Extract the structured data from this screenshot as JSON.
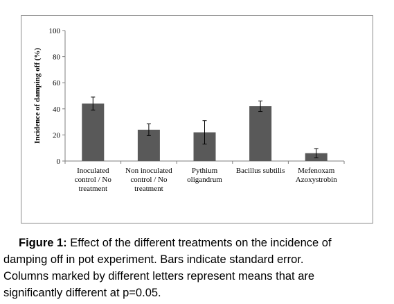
{
  "chart_data": {
    "type": "bar",
    "categories": [
      [
        "Inoculated",
        "control  / No",
        "treatment"
      ],
      [
        "Non inoculated",
        "control  / No",
        "treatment"
      ],
      [
        "Pythium",
        "oligandrum"
      ],
      [
        "Bacillus subtilis"
      ],
      [
        "Mefenoxam",
        "Azoxystrobin"
      ]
    ],
    "values": [
      44,
      24,
      22,
      42,
      6
    ],
    "errors": [
      5,
      4.5,
      9,
      4,
      3.5
    ],
    "ylabel": "Incidence of damping off (%)",
    "ylim": [
      0,
      100
    ],
    "yticks": [
      0,
      20,
      40,
      60,
      80,
      100
    ],
    "bar_color": "#595959",
    "grid": false
  },
  "caption": {
    "label": "Figure 1:",
    "line1": " Effect of the different treatments on the incidence of",
    "line2": "damping  off in pot experiment. Bars indicate standard error.",
    "line3": "Columns  marked by  different letters represent means that are",
    "line4": "significantly different at p=0.05."
  }
}
